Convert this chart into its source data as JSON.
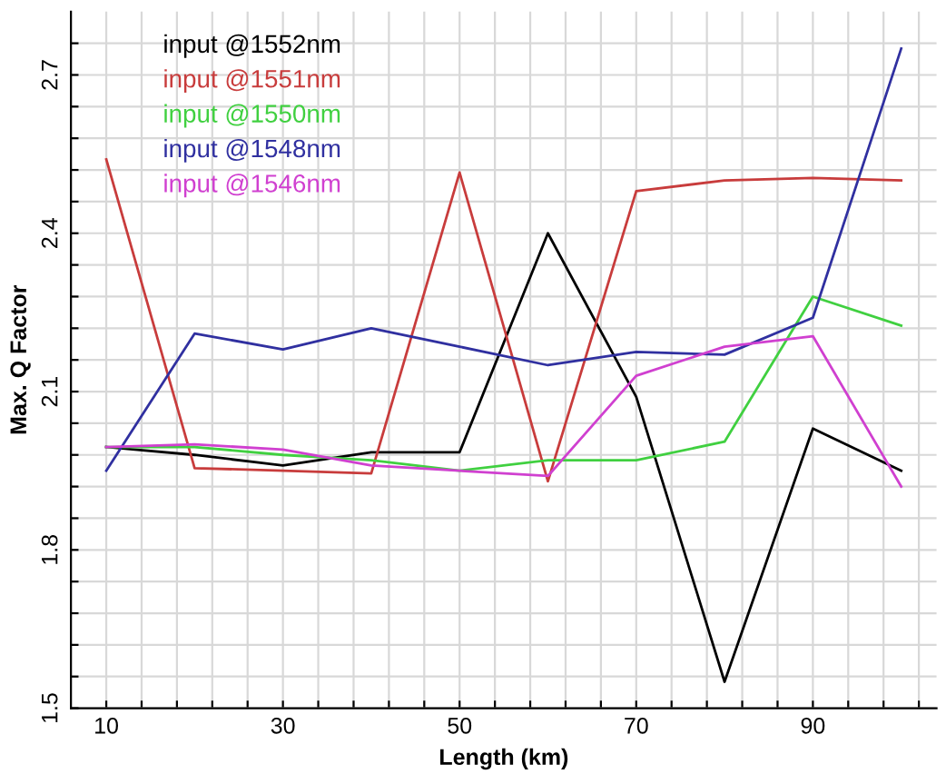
{
  "chart_data": {
    "type": "line",
    "xlabel": "Length (km)",
    "ylabel": "Max. Q Factor",
    "x": [
      10,
      20,
      30,
      40,
      50,
      60,
      70,
      80,
      90,
      100
    ],
    "series": [
      {
        "name": "input @1552nm",
        "color": "#000000",
        "values": [
          1.995,
          1.98,
          1.96,
          1.985,
          1.985,
          2.4,
          2.09,
          1.55,
          2.03,
          1.95
        ]
      },
      {
        "name": "input @1551nm",
        "color": "#c83c3c",
        "values": [
          2.54,
          1.955,
          1.95,
          1.945,
          2.515,
          1.93,
          2.48,
          2.5,
          2.505,
          2.5
        ]
      },
      {
        "name": "input @1550nm",
        "color": "#40d040",
        "values": [
          1.995,
          1.995,
          1.98,
          1.97,
          1.95,
          1.97,
          1.97,
          2.005,
          2.28,
          2.225
        ]
      },
      {
        "name": "input @1548nm",
        "color": "#3030a0",
        "values": [
          1.95,
          2.21,
          2.18,
          2.22,
          2.185,
          2.15,
          2.175,
          2.17,
          2.24,
          2.75
        ]
      },
      {
        "name": "input @1546nm",
        "color": "#d040d0",
        "values": [
          1.995,
          2.0,
          1.99,
          1.96,
          1.95,
          1.94,
          2.13,
          2.185,
          2.205,
          1.92
        ]
      }
    ],
    "xlim": [
      6,
      104
    ],
    "ylim": [
      1.5,
      2.82
    ],
    "xticks": [
      10,
      {
        "value": 14,
        "label": null
      },
      {
        "value": 18,
        "label": null
      },
      {
        "value": 22,
        "label": null
      },
      {
        "value": 26,
        "label": null
      },
      30,
      {
        "value": 34,
        "label": null
      },
      {
        "value": 38,
        "label": null
      },
      {
        "value": 42,
        "label": null
      },
      {
        "value": 46,
        "label": null
      },
      50,
      {
        "value": 54,
        "label": null
      },
      {
        "value": 58,
        "label": null
      },
      {
        "value": 62,
        "label": null
      },
      {
        "value": 66,
        "label": null
      },
      70,
      {
        "value": 74,
        "label": null
      },
      {
        "value": 78,
        "label": null
      },
      {
        "value": 82,
        "label": null
      },
      {
        "value": 86,
        "label": null
      },
      90,
      {
        "value": 94,
        "label": null
      },
      {
        "value": 98,
        "label": null
      },
      {
        "value": 102,
        "label": null
      }
    ],
    "yticks": [
      1.5,
      {
        "value": 1.56,
        "label": null
      },
      {
        "value": 1.62,
        "label": null
      },
      {
        "value": 1.68,
        "label": null
      },
      {
        "value": 1.74,
        "label": null
      },
      1.8,
      {
        "value": 1.86,
        "label": null
      },
      {
        "value": 1.92,
        "label": null
      },
      {
        "value": 1.98,
        "label": null
      },
      {
        "value": 2.04,
        "label": null
      },
      2.1,
      {
        "value": 2.16,
        "label": null
      },
      {
        "value": 2.22,
        "label": null
      },
      {
        "value": 2.28,
        "label": null
      },
      {
        "value": 2.34,
        "label": null
      },
      2.4,
      {
        "value": 2.46,
        "label": null
      },
      {
        "value": 2.52,
        "label": null
      },
      {
        "value": 2.58,
        "label": null
      },
      {
        "value": 2.64,
        "label": null
      },
      2.7,
      {
        "value": 2.76,
        "label": null
      }
    ],
    "grid": true,
    "legend": "top left",
    "marker": "none",
    "line_style": "solid"
  }
}
